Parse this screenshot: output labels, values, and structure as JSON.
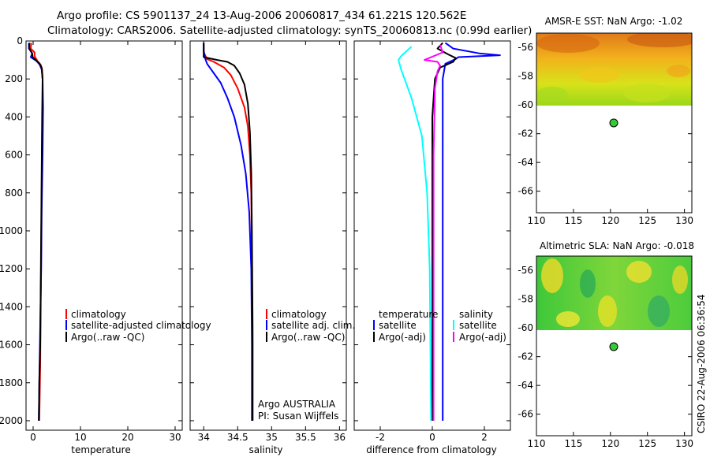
{
  "header": {
    "line1": "Argo profile: CS 5901137_24 13-Aug-2006 20060817_434 61.221S 120.562E",
    "line2": "Climatology: CARS2006. Satellite-adjusted climatology: synTS_20060813.nc (0.99d earlier)"
  },
  "credit": "CSIRO 22-Aug-2006 06:36:54",
  "colors": {
    "climatology": "#ff0000",
    "satellite": "#0000ff",
    "argo": "#000000",
    "sal_satellite": "#00ffff",
    "sal_argo": "#ff00ff",
    "marker": "#33cc33"
  },
  "chart_data": [
    {
      "id": "temperature",
      "type": "line",
      "xlabel": "temperature",
      "ylabel": "",
      "xlim": [
        -1.5,
        31.5
      ],
      "ylim": [
        0,
        2050
      ],
      "xticks": [
        "0",
        "10",
        "20",
        "30"
      ],
      "xtick_values": [
        0,
        10,
        20,
        30
      ],
      "yticks": [
        "0",
        "200",
        "400",
        "600",
        "800",
        "1000",
        "1200",
        "1400",
        "1600",
        "1800",
        "2000"
      ],
      "ytick_values": [
        0,
        200,
        400,
        600,
        800,
        1000,
        1200,
        1400,
        1600,
        1800,
        2000
      ],
      "legend": [
        "climatology",
        "satellite-adjusted climatology",
        "Argo(..raw -QC)"
      ],
      "series": [
        {
          "name": "climatology",
          "color": "climatology",
          "points": [
            [
              -0.4,
              10
            ],
            [
              -0.5,
              40
            ],
            [
              0.3,
              60
            ],
            [
              0.3,
              80
            ],
            [
              0.9,
              105
            ],
            [
              1.6,
              125
            ],
            [
              1.9,
              150
            ],
            [
              2.0,
              200
            ],
            [
              2.0,
              300
            ],
            [
              1.9,
              500
            ],
            [
              1.8,
              800
            ],
            [
              1.7,
              1100
            ],
            [
              1.6,
              1400
            ],
            [
              1.5,
              1700
            ],
            [
              1.3,
              2000
            ]
          ]
        },
        {
          "name": "satellite-adjusted climatology",
          "color": "satellite",
          "points": [
            [
              -0.9,
              10
            ],
            [
              -0.9,
              40
            ],
            [
              -0.2,
              65
            ],
            [
              -0.5,
              85
            ],
            [
              0.7,
              105
            ],
            [
              1.4,
              125
            ],
            [
              1.8,
              150
            ],
            [
              2.0,
              200
            ],
            [
              2.1,
              350
            ],
            [
              2.0,
              600
            ],
            [
              1.8,
              900
            ],
            [
              1.7,
              1200
            ],
            [
              1.5,
              1500
            ],
            [
              1.3,
              1800
            ],
            [
              1.2,
              2000
            ]
          ]
        },
        {
          "name": "Argo(..raw -QC)",
          "color": "argo",
          "points": [
            [
              -0.8,
              10
            ],
            [
              -0.8,
              40
            ],
            [
              -0.2,
              65
            ],
            [
              -0.1,
              85
            ],
            [
              0.5,
              100
            ],
            [
              1.2,
              115
            ],
            [
              1.8,
              140
            ],
            [
              2.0,
              200
            ],
            [
              1.9,
              400
            ],
            [
              1.8,
              700
            ],
            [
              1.7,
              1000
            ],
            [
              1.6,
              1300
            ],
            [
              1.5,
              1600
            ],
            [
              1.3,
              1800
            ],
            [
              1.2,
              2000
            ]
          ]
        }
      ]
    },
    {
      "id": "salinity",
      "type": "line",
      "xlabel": "salinity",
      "ylabel": "",
      "xlim": [
        33.8,
        36.1
      ],
      "ylim": [
        0,
        2050
      ],
      "xticks": [
        "34",
        "34.5",
        "35",
        "35.5",
        "36"
      ],
      "xtick_values": [
        34,
        34.5,
        35,
        35.5,
        36
      ],
      "yticks": [],
      "ytick_values": [
        0,
        200,
        400,
        600,
        800,
        1000,
        1200,
        1400,
        1600,
        1800,
        2000
      ],
      "legend": [
        "climatology",
        "satellite adj. clim.",
        "Argo(..raw -QC)"
      ],
      "annotations": [
        "Argo AUSTRALIA",
        "PI: Susan Wijffels"
      ],
      "series": [
        {
          "name": "climatology",
          "color": "climatology",
          "points": [
            [
              34.0,
              10
            ],
            [
              34.0,
              60
            ],
            [
              34.05,
              95
            ],
            [
              34.15,
              110
            ],
            [
              34.3,
              140
            ],
            [
              34.4,
              180
            ],
            [
              34.5,
              250
            ],
            [
              34.6,
              350
            ],
            [
              34.65,
              450
            ],
            [
              34.68,
              600
            ],
            [
              34.7,
              800
            ],
            [
              34.71,
              1200
            ],
            [
              34.72,
              1600
            ],
            [
              34.72,
              2000
            ]
          ]
        },
        {
          "name": "satellite adj. clim.",
          "color": "satellite",
          "points": [
            [
              34.0,
              10
            ],
            [
              34.0,
              50
            ],
            [
              34.02,
              90
            ],
            [
              34.05,
              120
            ],
            [
              34.15,
              170
            ],
            [
              34.25,
              220
            ],
            [
              34.35,
              300
            ],
            [
              34.45,
              400
            ],
            [
              34.55,
              550
            ],
            [
              34.62,
              700
            ],
            [
              34.67,
              900
            ],
            [
              34.7,
              1200
            ],
            [
              34.71,
              1600
            ],
            [
              34.71,
              2000
            ]
          ]
        },
        {
          "name": "Argo(..raw -QC)",
          "color": "argo",
          "points": [
            [
              34.0,
              10
            ],
            [
              34.0,
              60
            ],
            [
              34.0,
              85
            ],
            [
              34.2,
              100
            ],
            [
              34.35,
              110
            ],
            [
              34.45,
              130
            ],
            [
              34.53,
              170
            ],
            [
              34.6,
              230
            ],
            [
              34.65,
              330
            ],
            [
              34.68,
              480
            ],
            [
              34.7,
              700
            ],
            [
              34.71,
              1000
            ],
            [
              34.72,
              1500
            ],
            [
              34.72,
              2000
            ]
          ]
        }
      ]
    },
    {
      "id": "difference",
      "type": "line",
      "xlabel": "difference from climatology",
      "ylabel": "",
      "xlim": [
        -3.0,
        3.0
      ],
      "ylim": [
        0,
        2050
      ],
      "xticks": [
        "-2",
        "0",
        "2"
      ],
      "xtick_values": [
        -2,
        0,
        2
      ],
      "yticks": [],
      "ytick_values": [
        0,
        200,
        400,
        600,
        800,
        1000,
        1200,
        1400,
        1600,
        1800,
        2000
      ],
      "legend_groups": [
        {
          "title": "temperature",
          "items": [
            "satellite",
            "Argo(-adj)"
          ]
        },
        {
          "title": "salinity",
          "items": [
            "satellite",
            "Argo(-adj)"
          ]
        }
      ],
      "series": [
        {
          "name": "temperature satellite",
          "color": "satellite",
          "points": [
            [
              0.5,
              10
            ],
            [
              0.8,
              40
            ],
            [
              1.8,
              65
            ],
            [
              2.6,
              75
            ],
            [
              1.0,
              85
            ],
            [
              0.9,
              95
            ],
            [
              0.5,
              120
            ],
            [
              0.4,
              200
            ],
            [
              0.4,
              600
            ],
            [
              0.4,
              1200
            ],
            [
              0.4,
              2000
            ]
          ]
        },
        {
          "name": "temperature Argo(-adj)",
          "color": "argo",
          "points": [
            [
              0.4,
              10
            ],
            [
              0.2,
              40
            ],
            [
              0.6,
              70
            ],
            [
              0.9,
              90
            ],
            [
              0.8,
              110
            ],
            [
              0.3,
              140
            ],
            [
              0.1,
              200
            ],
            [
              0.0,
              400
            ],
            [
              0.0,
              1000
            ],
            [
              0.0,
              2000
            ]
          ]
        },
        {
          "name": "salinity satellite",
          "color": "sal_satellite",
          "points": [
            [
              -0.8,
              30
            ],
            [
              -1.2,
              80
            ],
            [
              -1.3,
              100
            ],
            [
              -1.2,
              150
            ],
            [
              -0.8,
              300
            ],
            [
              -0.4,
              500
            ],
            [
              -0.2,
              800
            ],
            [
              -0.1,
              1200
            ],
            [
              -0.05,
              2000
            ]
          ]
        },
        {
          "name": "salinity Argo(-adj)",
          "color": "sal_argo",
          "points": [
            [
              0.3,
              20
            ],
            [
              0.4,
              60
            ],
            [
              -0.3,
              100
            ],
            [
              0.2,
              110
            ],
            [
              0.3,
              130
            ],
            [
              0.2,
              160
            ],
            [
              0.1,
              250
            ],
            [
              0.05,
              600
            ],
            [
              0.05,
              2000
            ]
          ]
        }
      ]
    },
    {
      "id": "sst_map",
      "type": "heatmap",
      "title": "AMSR-E SST: NaN Argo: -1.02",
      "xlim": [
        110,
        131
      ],
      "ylim": [
        -67.5,
        -55
      ],
      "xticks": [
        "110",
        "115",
        "120",
        "125",
        "130"
      ],
      "xtick_values": [
        110,
        115,
        120,
        125,
        130
      ],
      "yticks": [
        "-56",
        "-58",
        "-60",
        "-62",
        "-64",
        "-66"
      ],
      "ytick_values": [
        -56,
        -58,
        -60,
        -62,
        -64,
        -66
      ],
      "data_lat_range": [
        -60,
        -55
      ],
      "marker": {
        "lon": 120.562,
        "lat": -61.221
      }
    },
    {
      "id": "sla_map",
      "type": "heatmap",
      "title": "Altimetric SLA: NaN Argo: -0.018",
      "xlim": [
        110,
        131
      ],
      "ylim": [
        -67.5,
        -55
      ],
      "xticks": [
        "110",
        "115",
        "120",
        "125",
        "130"
      ],
      "xtick_values": [
        110,
        115,
        120,
        125,
        130
      ],
      "yticks": [
        "-56",
        "-58",
        "-60",
        "-62",
        "-64",
        "-66"
      ],
      "ytick_values": [
        -56,
        -58,
        -60,
        -62,
        -64,
        -66
      ],
      "data_lat_range": [
        -60,
        -55
      ],
      "marker": {
        "lon": 120.562,
        "lat": -61.221
      }
    }
  ]
}
